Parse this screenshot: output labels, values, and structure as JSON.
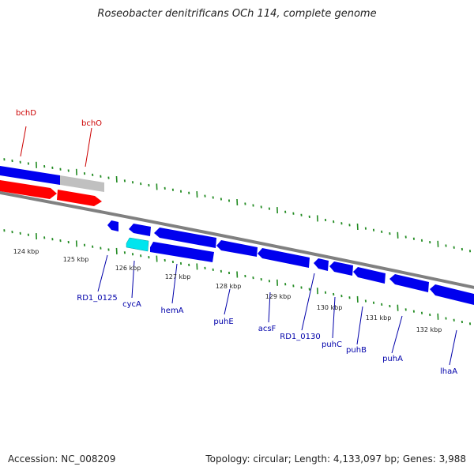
{
  "title": "Roseobacter denitrificans OCh 114, complete genome",
  "footer": {
    "accession": "Accession: NC_008209",
    "summary": "Topology: circular; Length: 4,133,097 bp; Genes: 3,988"
  },
  "colors": {
    "forward_gene": "#ff0000",
    "forward_other": "#c0c0c0",
    "reverse_gene": "#0000ee",
    "reverse_highlight": "#00e5ee",
    "backbone": "#808080",
    "tick": "#228b22",
    "label_forward": "#cc0000",
    "label_reverse": "#0000aa"
  },
  "kbp_ticks": [
    "124 kbp",
    "125 kbp",
    "126 kbp",
    "127 kbp",
    "128 kbp",
    "129 kbp",
    "130 kbp",
    "131 kbp",
    "132 kbp"
  ],
  "forward_labels": [
    "bchD",
    "bchO"
  ],
  "reverse_labels": [
    "RD1_0125",
    "cycA",
    "hemA",
    "puhE",
    "acsF",
    "RD1_0130",
    "puhC",
    "puhB",
    "puhA",
    "lhaA"
  ]
}
